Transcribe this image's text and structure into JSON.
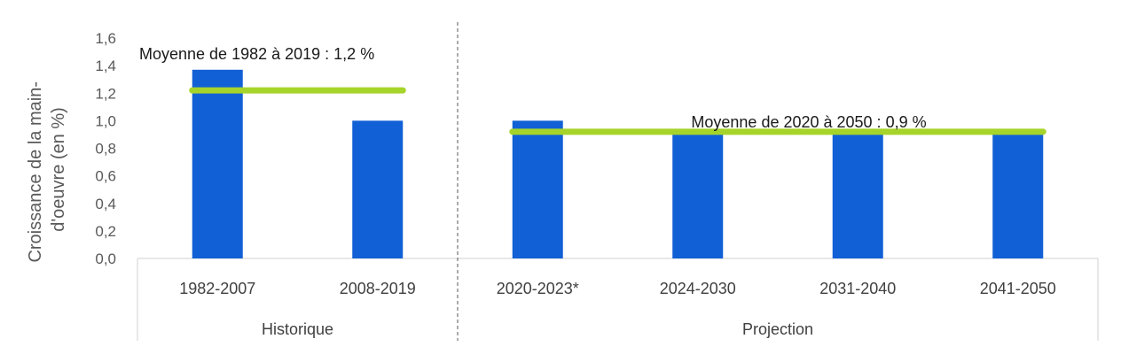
{
  "chart_data": {
    "type": "bar",
    "title": "",
    "ylabel_lines": [
      "Croissance de la main-",
      "d'oeuvre (en %)"
    ],
    "xlabel": "",
    "ylim": [
      0,
      1.6
    ],
    "yticks": [
      "0,0",
      "0,2",
      "0,4",
      "0,6",
      "0,8",
      "1,0",
      "1,2",
      "1,4",
      "1,6"
    ],
    "categories": [
      "1982-2007",
      "2008-2019",
      "2020-2023*",
      "2024-2030",
      "2031-2040",
      "2041-2050"
    ],
    "values": [
      1.37,
      1.0,
      1.0,
      0.91,
      0.91,
      0.9
    ],
    "bar_color": "#1160d6",
    "groups": [
      {
        "label": "Historique",
        "categories": [
          "1982-2007",
          "2008-2019"
        ]
      },
      {
        "label": "Projection",
        "categories": [
          "2020-2023*",
          "2024-2030",
          "2031-2040",
          "2041-2050"
        ]
      }
    ],
    "averages": [
      {
        "label": "Moyenne de 1982 à 2019 : 1,2 %",
        "value": 1.22,
        "from_category": "1982-2007",
        "to_category": "2008-2019",
        "color": "#a6d42a"
      },
      {
        "label": "Moyenne de 2020 à 2050 : 0,9 %",
        "value": 0.92,
        "from_category": "2020-2023*",
        "to_category": "2041-2050",
        "color": "#a6d42a"
      }
    ],
    "grid": false,
    "legend": "none"
  }
}
